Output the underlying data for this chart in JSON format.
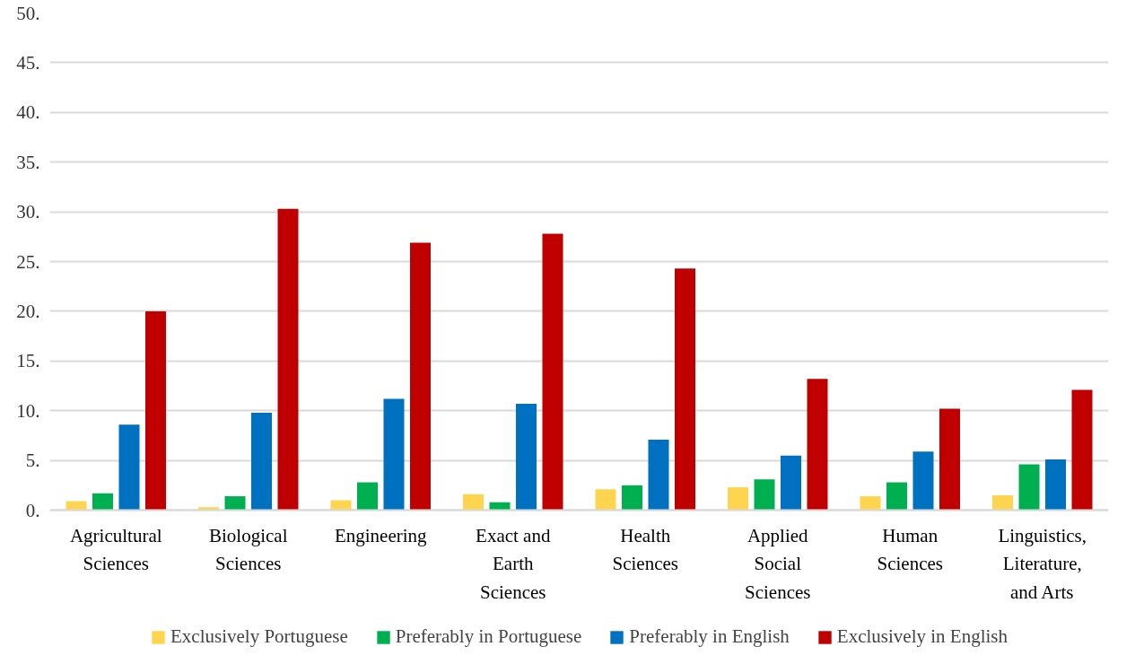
{
  "chart_data": {
    "type": "bar",
    "categories": [
      "Agricultural Sciences",
      "Biological Sciences",
      "Engineering",
      "Exact and Earth Sciences",
      "Health Sciences",
      "Applied Social Sciences",
      "Human Sciences",
      "Linguistics, Literature, and Arts"
    ],
    "series": [
      {
        "name": "Exclusively Portuguese",
        "color": "#ffd54f",
        "values": [
          0.9,
          0.3,
          1.0,
          1.6,
          2.1,
          2.3,
          1.4,
          1.5
        ]
      },
      {
        "name": "Preferably in Portuguese",
        "color": "#00b050",
        "values": [
          1.7,
          1.4,
          2.8,
          0.8,
          2.5,
          3.1,
          2.8,
          4.6
        ]
      },
      {
        "name": "Preferably in English",
        "color": "#0070c0",
        "values": [
          8.6,
          9.8,
          11.2,
          10.7,
          7.1,
          5.5,
          5.9,
          5.1
        ]
      },
      {
        "name": "Exclusively in English",
        "color": "#c00000",
        "values": [
          20.0,
          30.3,
          26.9,
          27.8,
          24.3,
          13.2,
          10.2,
          12.1
        ]
      }
    ],
    "ylim": [
      0,
      50
    ],
    "yticks": [
      {
        "value": 0,
        "label": "0."
      },
      {
        "value": 5,
        "label": "5."
      },
      {
        "value": 10,
        "label": "10."
      },
      {
        "value": 15,
        "label": "15."
      },
      {
        "value": 20,
        "label": "20."
      },
      {
        "value": 25,
        "label": "25."
      },
      {
        "value": 30,
        "label": "30."
      },
      {
        "value": 35,
        "label": "35."
      },
      {
        "value": 40,
        "label": "40."
      },
      {
        "value": 45,
        "label": "45."
      },
      {
        "value": 50,
        "label": "50."
      }
    ],
    "grid": "y",
    "legend": "bottom"
  }
}
